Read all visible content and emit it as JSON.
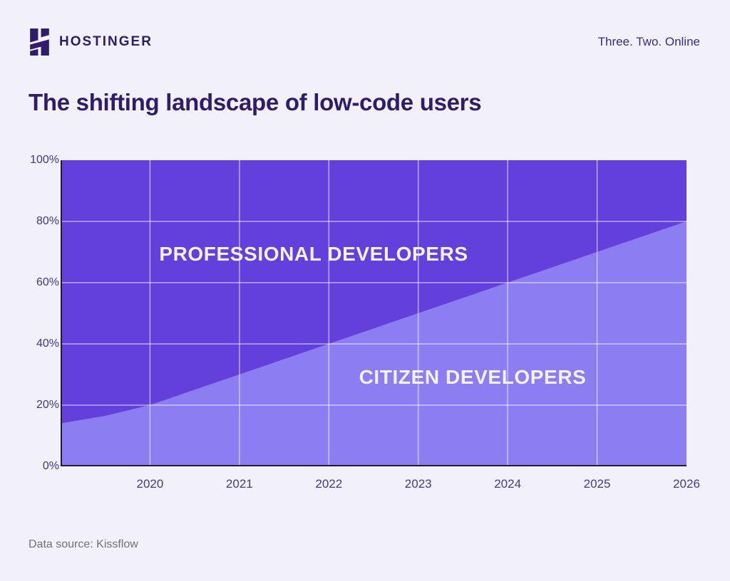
{
  "header": {
    "brand": "HOSTINGER",
    "tagline": "Three. Two. Online"
  },
  "title": "The shifting landscape of low-code users",
  "footer": {
    "source": "Data source: Kissflow"
  },
  "colors": {
    "background": "#F2F1FB",
    "brand_dark": "#2F1C6A",
    "area_professional": "#6340DC",
    "area_citizen": "#8C7DF2",
    "gridline": "rgba(255,255,255,0.55)",
    "axis_line": "#1E1B33",
    "tick_label": "#43338A",
    "area_label_text": "#F3F1FE",
    "source_text": "#6E7183"
  },
  "chart_data": {
    "type": "area",
    "stacked": true,
    "title": "The shifting landscape of low-code users",
    "x": [
      2019,
      2019.5,
      2020,
      2021,
      2022,
      2023,
      2024,
      2025,
      2026
    ],
    "xlim": [
      2019,
      2026
    ],
    "ylim": [
      0,
      100
    ],
    "series": [
      {
        "name": "CITIZEN DEVELOPERS",
        "values": [
          14,
          16.5,
          20,
          30,
          40,
          50,
          60,
          70,
          80
        ],
        "color": "#8C7DF2"
      },
      {
        "name": "PROFESSIONAL DEVELOPERS",
        "values": [
          86,
          83.5,
          80,
          70,
          60,
          50,
          40,
          30,
          20
        ],
        "color": "#6340DC"
      }
    ],
    "ytick_values": [
      0,
      20,
      40,
      60,
      80,
      100
    ],
    "ytick_labels": [
      "0%",
      "20%",
      "40%",
      "60%",
      "80%",
      "100%"
    ],
    "xtick_values": [
      2020,
      2021,
      2022,
      2023,
      2024,
      2025,
      2026
    ],
    "xtick_labels": [
      "2020",
      "2021",
      "2022",
      "2023",
      "2024",
      "2025",
      "2026"
    ],
    "grid": true,
    "legend": "labels drawn inside areas"
  }
}
